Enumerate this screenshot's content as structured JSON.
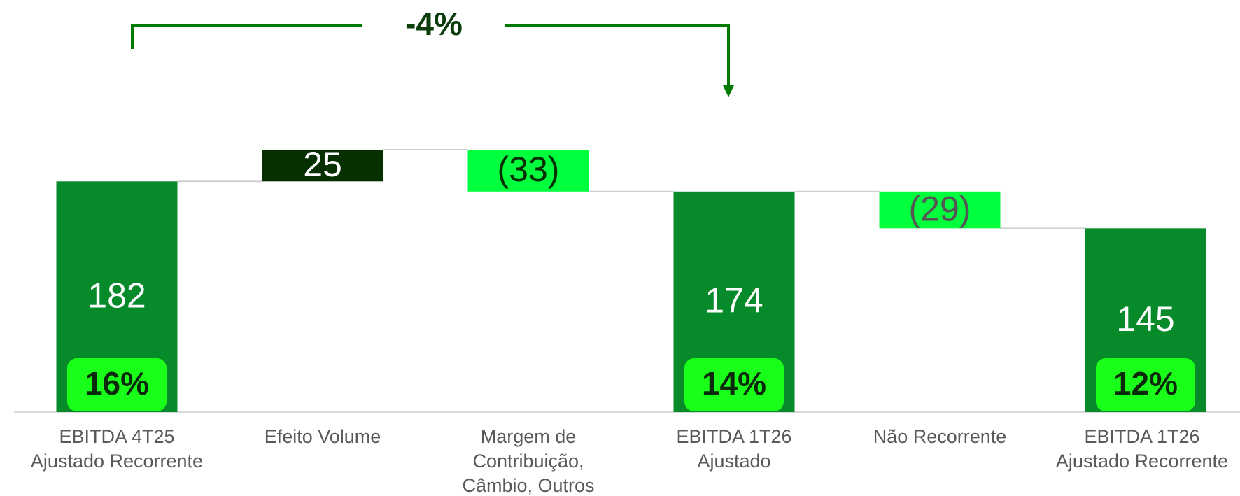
{
  "chart_data": {
    "type": "waterfall",
    "annotation": "-4%",
    "categories": [
      [
        "EBITDA 4T25",
        "Ajustado Recorrente"
      ],
      [
        "Efeito Volume"
      ],
      [
        "Margem de",
        "Contribuição,",
        "Câmbio, Outros"
      ],
      [
        "EBITDA 1T26",
        "Ajustado"
      ],
      [
        "Não Recorrente"
      ],
      [
        "EBITDA 1T26",
        "Ajustado Recorrente"
      ]
    ],
    "measures": [
      "total",
      "relative",
      "relative",
      "total",
      "relative",
      "total"
    ],
    "values": [
      182,
      25,
      -33,
      174,
      -29,
      145
    ],
    "value_labels": [
      "182",
      "25",
      "(33)",
      "174",
      "(29)",
      "145"
    ],
    "colors": [
      "#078a2a",
      "#063000",
      "#00ff3c",
      "#078a2a",
      "#00ff3c",
      "#078a2a"
    ],
    "label_colors": [
      "#ffffff",
      "#ffffff",
      "#063000",
      "#ffffff",
      "#555555",
      "#ffffff"
    ],
    "margins": [
      16,
      null,
      null,
      14,
      null,
      12
    ],
    "margin_labels": [
      "16%",
      null,
      null,
      "14%",
      null,
      "12%"
    ],
    "margin_color": "#1aff1a",
    "ylim": [
      0,
      260
    ]
  }
}
